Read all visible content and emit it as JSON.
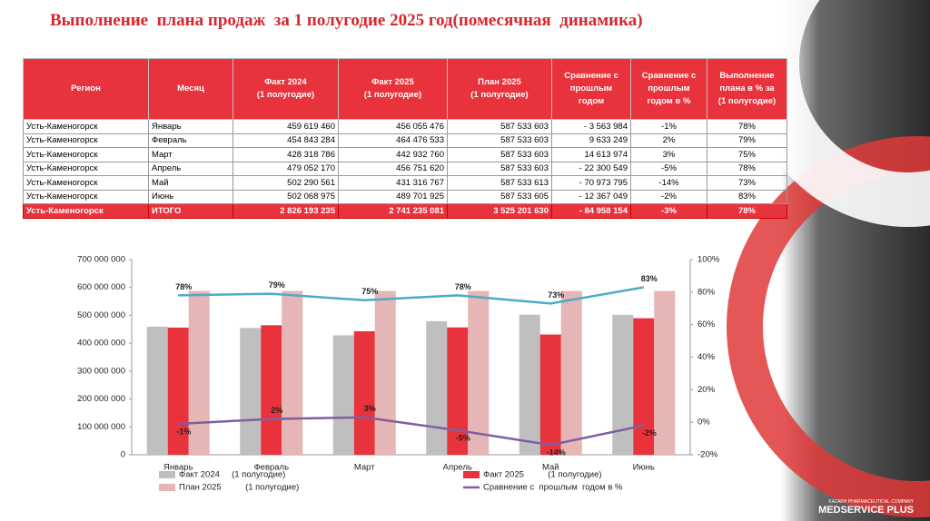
{
  "title": "Выполнение  плана продаж  за 1 полугодие 2025 год(помесячная  динамика)",
  "table": {
    "header": [
      [
        "Регион"
      ],
      [
        "Месяц"
      ],
      [
        "Факт 2024",
        "(1 полугодие)"
      ],
      [
        "Факт 2025",
        "(1 полугодие)"
      ],
      [
        "План 2025",
        "(1 полугодие)"
      ],
      [
        "Сравнение с",
        "прошлым",
        "годом"
      ],
      [
        "Сравнение с",
        "прошлым",
        "годом в %"
      ],
      [
        "Выполнение",
        "плана в %  за",
        "(1 полугодие)"
      ]
    ],
    "rows": [
      [
        "Усть-Каменогорск",
        "Январь",
        "459 619 460",
        "456 055 476",
        "587 533 603",
        "- 3 563 984",
        "-1%",
        "78%"
      ],
      [
        "Усть-Каменогорск",
        "Февраль",
        "454 843 284",
        "464 476 533",
        "587 533 603",
        "9 633 249",
        "2%",
        "79%"
      ],
      [
        "Усть-Каменогорск",
        "Март",
        "428 318 786",
        "442 932 760",
        "587 533 603",
        "14 613 974",
        "3%",
        "75%"
      ],
      [
        "Усть-Каменогорск",
        "Апрель",
        "479 052 170",
        "456 751 620",
        "587 533 603",
        "- 22 300 549",
        "-5%",
        "78%"
      ],
      [
        "Усть-Каменогорск",
        "Май",
        "502 290 561",
        "431 316 767",
        "587 533 613",
        "- 70 973 795",
        "-14%",
        "73%"
      ],
      [
        "Усть-Каменогорск",
        "Июнь",
        "502 068 975",
        "489 701 925",
        "587 533 605",
        "- 12 367 049",
        "-2%",
        "83%"
      ]
    ],
    "total": [
      "Усть-Каменогорск",
      "ИТОГО",
      "2 826 193 235",
      "2 741 235 081",
      "3 525 201 630",
      "- 84 958 154",
      "-3%",
      "78%"
    ]
  },
  "chart_data": {
    "type": "combo",
    "categories": [
      "Январь",
      "Февраль",
      "Март",
      "Апрель",
      "Май",
      "Июнь"
    ],
    "series": [
      {
        "name": "Факт 2024     (1 полугодие)",
        "type": "bar",
        "color": "#bfbfbf",
        "values": [
          459619460,
          454843284,
          428318786,
          479052170,
          502290561,
          502068975
        ]
      },
      {
        "name": "Факт 2025          (1 полугодие)",
        "type": "bar",
        "color": "#e8323c",
        "values": [
          456055476,
          464476533,
          442932760,
          456751620,
          431316767,
          489701925
        ]
      },
      {
        "name": "План 2025          (1 полугодие)",
        "type": "bar",
        "color": "#e6b5b5",
        "values": [
          587533603,
          587533603,
          587533603,
          587533603,
          587533613,
          587533605
        ]
      },
      {
        "type": "line",
        "axis": "y2",
        "color": "#4bacc6",
        "values": [
          78,
          79,
          75,
          78,
          73,
          83
        ],
        "value_labels": [
          "78%",
          "79%",
          "75%",
          "78%",
          "73%",
          "83%"
        ]
      },
      {
        "name": "Сравнение с  прошлым  годом в %",
        "type": "line",
        "axis": "y2",
        "color": "#7f5f9f",
        "values": [
          -1,
          2,
          3,
          -5,
          -14,
          -2
        ],
        "value_labels": [
          "-1%",
          "2%",
          "3%",
          "-5%",
          "-14%",
          "-2%"
        ]
      }
    ],
    "ylim": [
      0,
      700000000
    ],
    "yticks": [
      0,
      {
        "value": 100000000,
        "label": "100 000 000"
      },
      {
        "value": 200000000,
        "label": "200 000 000"
      },
      {
        "value": 300000000,
        "label": "300 000 000"
      },
      {
        "value": 400000000,
        "label": "400 000 000"
      },
      {
        "value": 500000000,
        "label": "500 000 000"
      },
      {
        "value": 600000000,
        "label": "600 000 000"
      },
      {
        "value": 700000000,
        "label": "700 000 000"
      }
    ],
    "y2lim": [
      -20,
      100
    ],
    "y2ticks": [
      {
        "value": -20,
        "label": "-20%"
      },
      {
        "value": 0,
        "label": "0%"
      },
      {
        "value": 20,
        "label": "20%"
      },
      {
        "value": 40,
        "label": "40%"
      },
      {
        "value": 60,
        "label": "60%"
      },
      {
        "value": 80,
        "label": "80%"
      },
      {
        "value": 100,
        "label": "100%"
      }
    ]
  },
  "logo": {
    "tagline": "KAZAKH PHARMACEUTICAL COMPANY",
    "name": "MEDSERVICE PLUS"
  }
}
